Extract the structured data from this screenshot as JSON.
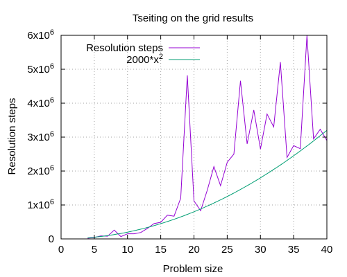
{
  "chart_data": {
    "type": "line",
    "title": "Tseiting on the grid results",
    "xlabel": "Problem size",
    "ylabel": "Resolution steps",
    "xlim": [
      0,
      40
    ],
    "ylim": [
      0,
      6000000
    ],
    "x_ticks": [
      0,
      5,
      10,
      15,
      20,
      25,
      30,
      35,
      40
    ],
    "y_ticks": [
      {
        "value": 0,
        "base": "0",
        "exp": ""
      },
      {
        "value": 1000000,
        "base": "1x10",
        "exp": "6"
      },
      {
        "value": 2000000,
        "base": "2x10",
        "exp": "6"
      },
      {
        "value": 3000000,
        "base": "3x10",
        "exp": "6"
      },
      {
        "value": 4000000,
        "base": "4x10",
        "exp": "6"
      },
      {
        "value": 5000000,
        "base": "5x10",
        "exp": "6"
      },
      {
        "value": 6000000,
        "base": "6x10",
        "exp": "6"
      }
    ],
    "grid": true,
    "legend_position": "top-left",
    "series": [
      {
        "name": "Resolution steps",
        "color": "#9400d3",
        "points": [
          [
            4,
            20000
          ],
          [
            5,
            40000
          ],
          [
            6,
            90000
          ],
          [
            7,
            80000
          ],
          [
            8,
            260000
          ],
          [
            9,
            70000
          ],
          [
            10,
            150000
          ],
          [
            11,
            150000
          ],
          [
            12,
            190000
          ],
          [
            13,
            310000
          ],
          [
            14,
            450000
          ],
          [
            15,
            490000
          ],
          [
            16,
            700000
          ],
          [
            17,
            670000
          ],
          [
            18,
            1200000
          ],
          [
            19,
            4820000
          ],
          [
            20,
            1120000
          ],
          [
            21,
            830000
          ],
          [
            22,
            1430000
          ],
          [
            23,
            2130000
          ],
          [
            24,
            1570000
          ],
          [
            25,
            2260000
          ],
          [
            26,
            2500000
          ],
          [
            27,
            4660000
          ],
          [
            28,
            2800000
          ],
          [
            29,
            3800000
          ],
          [
            30,
            2650000
          ],
          [
            31,
            3680000
          ],
          [
            32,
            3300000
          ],
          [
            33,
            5210000
          ],
          [
            34,
            2400000
          ],
          [
            35,
            2750000
          ],
          [
            36,
            2660000
          ],
          [
            37,
            6000000
          ],
          [
            38,
            2950000
          ],
          [
            39,
            3230000
          ],
          [
            40,
            2900000
          ]
        ]
      },
      {
        "name": "2000*x",
        "name_sup": "2",
        "color": "#009e73",
        "function": "2000*x^2",
        "x_range": [
          4,
          40
        ]
      }
    ]
  }
}
